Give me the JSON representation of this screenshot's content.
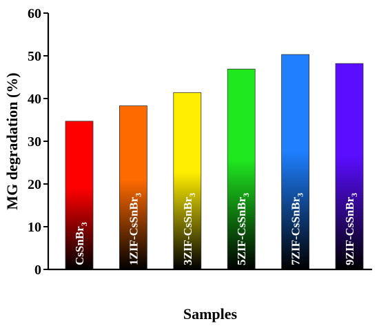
{
  "chart_data": {
    "type": "bar",
    "title": "",
    "xlabel": "Samples",
    "ylabel": "MG degradation (%)",
    "ylim": [
      0,
      60
    ],
    "yticks": [
      0,
      10,
      20,
      30,
      40,
      50,
      60
    ],
    "grid": false,
    "legend": "none",
    "categories": [
      {
        "name": "CsSnBr",
        "sub": "3"
      },
      {
        "name": "1ZIF-CsSnBr",
        "sub": "3"
      },
      {
        "name": "3ZIF-CsSnBr",
        "sub": "3"
      },
      {
        "name": "5ZIF-CsSnBr",
        "sub": "3"
      },
      {
        "name": "7ZIF-CsSnBr",
        "sub": "3"
      },
      {
        "name": "9ZIF-CsSnBr",
        "sub": "3"
      }
    ],
    "values": [
      34.7,
      38.3,
      41.4,
      46.9,
      50.3,
      48.2
    ],
    "colors": [
      "#ff0000",
      "#ff6a00",
      "#ffee00",
      "#1fe81f",
      "#1e7fff",
      "#5a0dff"
    ]
  }
}
